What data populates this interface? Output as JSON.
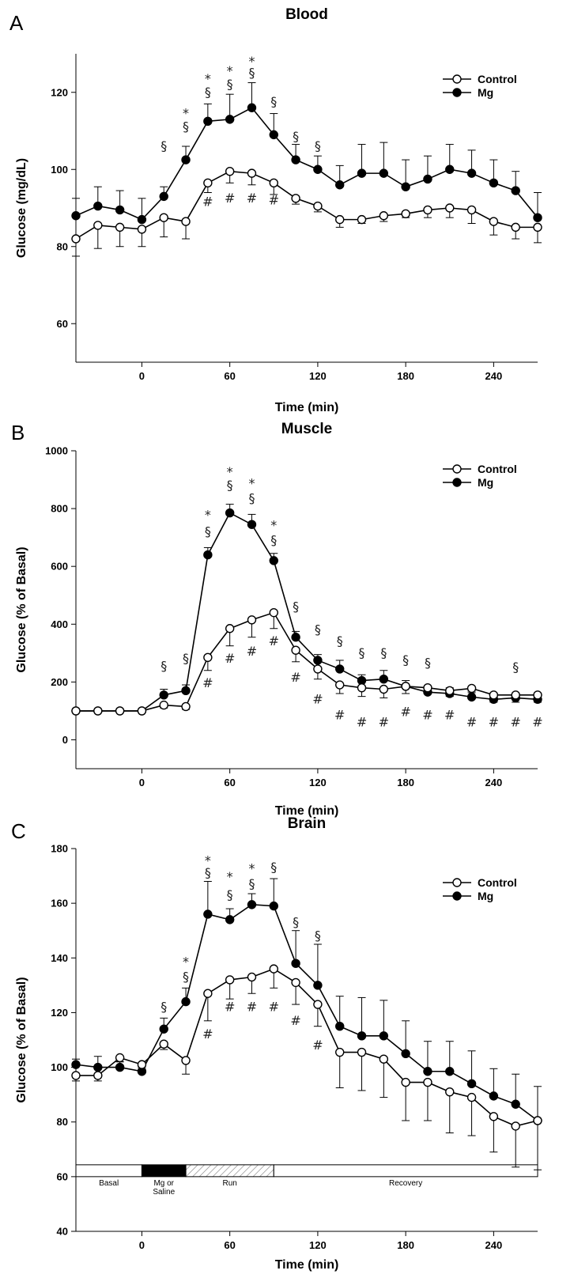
{
  "chart_data": [
    {
      "panel": "A",
      "type": "line",
      "title": "Blood",
      "xlabel": "Time (min)",
      "ylabel": "Glucose (mg/dL)",
      "xlim": [
        -45,
        270
      ],
      "ylim": [
        50,
        130
      ],
      "xticks": [
        "0",
        "60",
        "120",
        "180",
        "240"
      ],
      "yticks": [
        "60",
        "80",
        "100",
        "120"
      ],
      "legend": "top-right",
      "x": [
        -45,
        -30,
        -15,
        0,
        15,
        30,
        45,
        60,
        75,
        90,
        105,
        120,
        135,
        150,
        165,
        180,
        195,
        210,
        225,
        240,
        255,
        270
      ],
      "series": [
        {
          "name": "Control",
          "marker": "open",
          "values": [
            82,
            85.5,
            85,
            84.5,
            87.5,
            86.5,
            96.5,
            99.5,
            99,
            96.5,
            92.5,
            90.5,
            87,
            87,
            88,
            88.5,
            89.5,
            90,
            89.5,
            86.5,
            85,
            85
          ],
          "errors": [
            4.5,
            6,
            5,
            4.5,
            5,
            4.5,
            2.5,
            3,
            3,
            3,
            1.5,
            1.5,
            2,
            1,
            1.5,
            1,
            2,
            2.5,
            3.5,
            3.5,
            3,
            4
          ]
        },
        {
          "name": "Mg",
          "marker": "filled",
          "values": [
            88,
            90.5,
            89.5,
            87,
            93,
            102.5,
            112.5,
            113,
            116,
            109,
            102.5,
            100,
            96,
            99,
            99,
            95.5,
            97.5,
            100,
            99,
            96.5,
            94.5,
            87.5
          ],
          "errors": [
            4.5,
            5,
            5,
            5.5,
            2.5,
            3.5,
            4.5,
            6.5,
            6.5,
            5.5,
            4,
            3.5,
            5,
            7.5,
            8,
            7,
            6,
            6.5,
            6,
            6,
            5,
            6.5
          ]
        }
      ],
      "annotations": [
        {
          "x": 15,
          "y": 106,
          "text": "§"
        },
        {
          "x": 30,
          "y": 111,
          "text": "§"
        },
        {
          "x": 30,
          "y": 115.5,
          "text": "*"
        },
        {
          "x": 45,
          "y": 120,
          "text": "§"
        },
        {
          "x": 45,
          "y": 124.5,
          "text": "*"
        },
        {
          "x": 60,
          "y": 122,
          "text": "§"
        },
        {
          "x": 60,
          "y": 126.5,
          "text": "*"
        },
        {
          "x": 75,
          "y": 125,
          "text": "§"
        },
        {
          "x": 75,
          "y": 129,
          "text": "*"
        },
        {
          "x": 90,
          "y": 117.5,
          "text": "§"
        },
        {
          "x": 105,
          "y": 108.5,
          "text": "§"
        },
        {
          "x": 120,
          "y": 106,
          "text": "§"
        },
        {
          "x": 45,
          "y": 91.5,
          "text": "#"
        },
        {
          "x": 60,
          "y": 92.5,
          "text": "#"
        },
        {
          "x": 75,
          "y": 92.5,
          "text": "#"
        },
        {
          "x": 90,
          "y": 92,
          "text": "#"
        }
      ]
    },
    {
      "panel": "B",
      "type": "line",
      "title": "Muscle",
      "xlabel": "Time (min)",
      "ylabel": "Glucose (% of Basal)",
      "xlim": [
        -45,
        270
      ],
      "ylim": [
        -100,
        1000
      ],
      "xticks": [
        "0",
        "60",
        "120",
        "180",
        "240"
      ],
      "yticks": [
        "0",
        "200",
        "400",
        "600",
        "800",
        "1000"
      ],
      "legend": "top-right",
      "x": [
        -45,
        -30,
        -15,
        0,
        15,
        30,
        45,
        60,
        75,
        90,
        105,
        120,
        135,
        150,
        165,
        180,
        195,
        210,
        225,
        240,
        255,
        270
      ],
      "series": [
        {
          "name": "Control",
          "marker": "open",
          "values": [
            100,
            100,
            100,
            100,
            120,
            115,
            285,
            385,
            415,
            440,
            310,
            245,
            190,
            180,
            175,
            185,
            180,
            170,
            178,
            155,
            155,
            155
          ],
          "errors": [
            0,
            0,
            0,
            0,
            10,
            10,
            45,
            60,
            60,
            55,
            40,
            35,
            30,
            30,
            30,
            25,
            20,
            20,
            15,
            25,
            25,
            25
          ]
        },
        {
          "name": "Mg",
          "marker": "filled",
          "values": [
            100,
            100,
            100,
            100,
            155,
            170,
            640,
            785,
            745,
            620,
            355,
            275,
            245,
            205,
            210,
            185,
            165,
            160,
            148,
            140,
            145,
            140
          ],
          "errors": [
            0,
            0,
            0,
            0,
            20,
            20,
            25,
            30,
            35,
            25,
            20,
            20,
            30,
            20,
            30,
            20,
            20,
            20,
            20,
            15,
            15,
            15
          ]
        }
      ],
      "annotations": [
        {
          "x": 15,
          "y": 255,
          "text": "§"
        },
        {
          "x": 30,
          "y": 280,
          "text": "§"
        },
        {
          "x": 45,
          "y": 720,
          "text": "§"
        },
        {
          "x": 45,
          "y": 790,
          "text": "*"
        },
        {
          "x": 60,
          "y": 880,
          "text": "§"
        },
        {
          "x": 60,
          "y": 940,
          "text": "*"
        },
        {
          "x": 75,
          "y": 835,
          "text": "§"
        },
        {
          "x": 75,
          "y": 900,
          "text": "*"
        },
        {
          "x": 90,
          "y": 690,
          "text": "§"
        },
        {
          "x": 90,
          "y": 755,
          "text": "*"
        },
        {
          "x": 105,
          "y": 460,
          "text": "§"
        },
        {
          "x": 120,
          "y": 380,
          "text": "§"
        },
        {
          "x": 135,
          "y": 340,
          "text": "§"
        },
        {
          "x": 150,
          "y": 300,
          "text": "§"
        },
        {
          "x": 165,
          "y": 300,
          "text": "§"
        },
        {
          "x": 180,
          "y": 275,
          "text": "§"
        },
        {
          "x": 195,
          "y": 265,
          "text": "§"
        },
        {
          "x": 255,
          "y": 250,
          "text": "§"
        },
        {
          "x": 45,
          "y": 195,
          "text": "#"
        },
        {
          "x": 60,
          "y": 280,
          "text": "#"
        },
        {
          "x": 75,
          "y": 305,
          "text": "#"
        },
        {
          "x": 90,
          "y": 340,
          "text": "#"
        },
        {
          "x": 105,
          "y": 215,
          "text": "#"
        },
        {
          "x": 120,
          "y": 140,
          "text": "#"
        },
        {
          "x": 135,
          "y": 85,
          "text": "#"
        },
        {
          "x": 150,
          "y": 60,
          "text": "#"
        },
        {
          "x": 165,
          "y": 60,
          "text": "#"
        },
        {
          "x": 180,
          "y": 95,
          "text": "#"
        },
        {
          "x": 195,
          "y": 85,
          "text": "#"
        },
        {
          "x": 210,
          "y": 85,
          "text": "#"
        },
        {
          "x": 225,
          "y": 60,
          "text": "#"
        },
        {
          "x": 240,
          "y": 60,
          "text": "#"
        },
        {
          "x": 255,
          "y": 60,
          "text": "#"
        },
        {
          "x": 270,
          "y": 60,
          "text": "#"
        }
      ]
    },
    {
      "panel": "C",
      "type": "line",
      "title": "Brain",
      "xlabel": "Time (min)",
      "ylabel": "Glucose (% of Basal)",
      "xlim": [
        -45,
        270
      ],
      "ylim": [
        40,
        180
      ],
      "xticks": [
        "0",
        "60",
        "120",
        "180",
        "240"
      ],
      "yticks": [
        "40",
        "60",
        "80",
        "100",
        "120",
        "140",
        "160",
        "180"
      ],
      "legend": "top-right",
      "x": [
        -45,
        -30,
        -15,
        0,
        15,
        30,
        45,
        60,
        75,
        90,
        105,
        120,
        135,
        150,
        165,
        180,
        195,
        210,
        225,
        240,
        255,
        270
      ],
      "series": [
        {
          "name": "Control",
          "marker": "open",
          "values": [
            97,
            97,
            103.5,
            101,
            108.5,
            102.5,
            127,
            132,
            133,
            136,
            131,
            123,
            105.5,
            105.5,
            103,
            94.5,
            94.5,
            91,
            89,
            82,
            78.5,
            80.5
          ],
          "errors": [
            2,
            2,
            1.5,
            1.5,
            2,
            5,
            10,
            7,
            6,
            7,
            8,
            8,
            13,
            14,
            14,
            14,
            14,
            15,
            14,
            13,
            15,
            18
          ]
        },
        {
          "name": "Mg",
          "marker": "filled",
          "values": [
            101,
            100,
            100,
            98.5,
            114,
            124,
            156,
            154,
            159.5,
            159,
            138,
            130,
            115,
            111.5,
            111.5,
            105,
            98.5,
            98.5,
            94,
            89.5,
            86.5,
            80.5
          ],
          "errors": [
            2,
            4,
            2,
            1.5,
            4,
            5,
            12,
            4,
            4,
            10,
            12,
            15,
            11,
            14,
            13,
            12,
            11,
            11,
            12,
            10,
            11,
            12.5
          ]
        }
      ],
      "annotations": [
        {
          "x": 15,
          "y": 122,
          "text": "§"
        },
        {
          "x": 30,
          "y": 133,
          "text": "§"
        },
        {
          "x": 30,
          "y": 140,
          "text": "*"
        },
        {
          "x": 45,
          "y": 171,
          "text": "§"
        },
        {
          "x": 45,
          "y": 177,
          "text": "*"
        },
        {
          "x": 60,
          "y": 163,
          "text": "§"
        },
        {
          "x": 60,
          "y": 171,
          "text": "*"
        },
        {
          "x": 75,
          "y": 167,
          "text": "§"
        },
        {
          "x": 75,
          "y": 174,
          "text": "*"
        },
        {
          "x": 90,
          "y": 173,
          "text": "§"
        },
        {
          "x": 105,
          "y": 153,
          "text": "§"
        },
        {
          "x": 120,
          "y": 148,
          "text": "§"
        },
        {
          "x": 45,
          "y": 112,
          "text": "#"
        },
        {
          "x": 60,
          "y": 122,
          "text": "#"
        },
        {
          "x": 75,
          "y": 122,
          "text": "#"
        },
        {
          "x": 90,
          "y": 122,
          "text": "#"
        },
        {
          "x": 105,
          "y": 117,
          "text": "#"
        },
        {
          "x": 120,
          "y": 108,
          "text": "#"
        }
      ],
      "protocol_bar": [
        {
          "label": "Basal",
          "start": -45,
          "end": 0,
          "fill": "white"
        },
        {
          "label": "Mg or Saline",
          "start": 0,
          "end": 30,
          "fill": "black"
        },
        {
          "label": "Run",
          "start": 30,
          "end": 90,
          "fill": "hatched"
        },
        {
          "label": "Recovery",
          "start": 90,
          "end": 270,
          "fill": "white"
        }
      ]
    }
  ],
  "panel_labels": [
    "A",
    "B",
    "C"
  ],
  "colors": {
    "line": "#000000",
    "error_bar": "#000000",
    "annotation": "#222222"
  }
}
